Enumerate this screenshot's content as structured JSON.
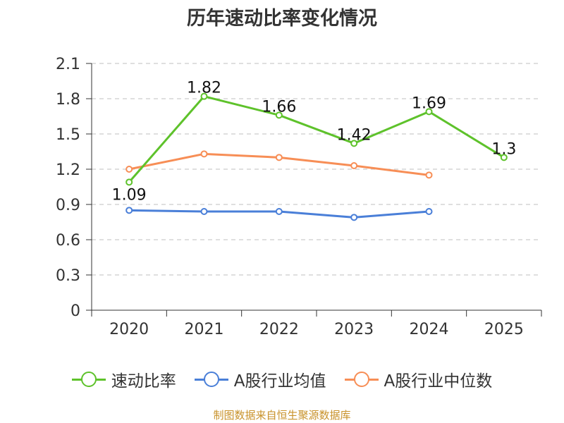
{
  "chart_data": {
    "type": "line",
    "title": "历年速动比率变化情况",
    "categories": [
      "2020",
      "2021",
      "2022",
      "2023",
      "2024",
      "2025"
    ],
    "y_ticks": [
      "0",
      "0.3",
      "0.6",
      "0.9",
      "1.2",
      "1.5",
      "1.8",
      "2.1"
    ],
    "ylim": [
      0,
      2.1
    ],
    "grid": true,
    "legend_position": "bottom",
    "series": [
      {
        "name": "速动比率",
        "color": "#5ec22b",
        "values": [
          1.09,
          1.82,
          1.66,
          1.42,
          1.69,
          1.3
        ],
        "labels": [
          "1.09",
          "1.82",
          "1.66",
          "1.42",
          "1.69",
          "1.3"
        ]
      },
      {
        "name": "A股行业均值",
        "color": "#4a7fd8",
        "values": [
          0.85,
          0.84,
          0.84,
          0.79,
          0.84,
          null
        ]
      },
      {
        "name": "A股行业中位数",
        "color": "#f78e56",
        "values": [
          1.2,
          1.33,
          1.3,
          1.23,
          1.15,
          null
        ]
      }
    ]
  },
  "footer": "制图数据来自恒生聚源数据库"
}
